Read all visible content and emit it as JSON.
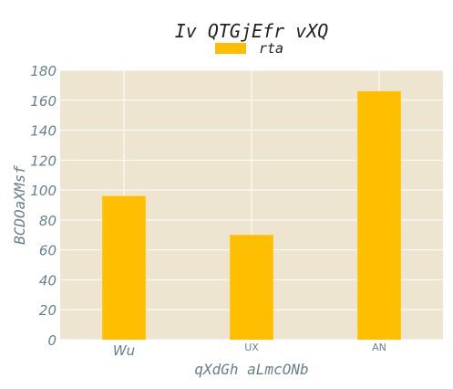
{
  "chart_data": {
    "type": "bar",
    "title": "Iv QTGjEfr vXQ",
    "xlabel": "qXdGh aLmcONb",
    "ylabel": "BCDOaXMsf",
    "categories": [
      "Wu",
      "UX",
      "AN"
    ],
    "series": [
      {
        "name": "rta",
        "values": [
          96,
          70,
          166
        ]
      }
    ],
    "ylim": [
      0,
      180
    ],
    "yticks": [
      0,
      20,
      40,
      60,
      80,
      100,
      120,
      140,
      160,
      180
    ],
    "grid": true,
    "legend_position": "top-center",
    "colors": {
      "bar": "#ffbf00",
      "plot_background": "#ede5d0",
      "grid": "#ffffff",
      "axis_text": "#6a7f8c",
      "title_text": "#222222"
    }
  }
}
